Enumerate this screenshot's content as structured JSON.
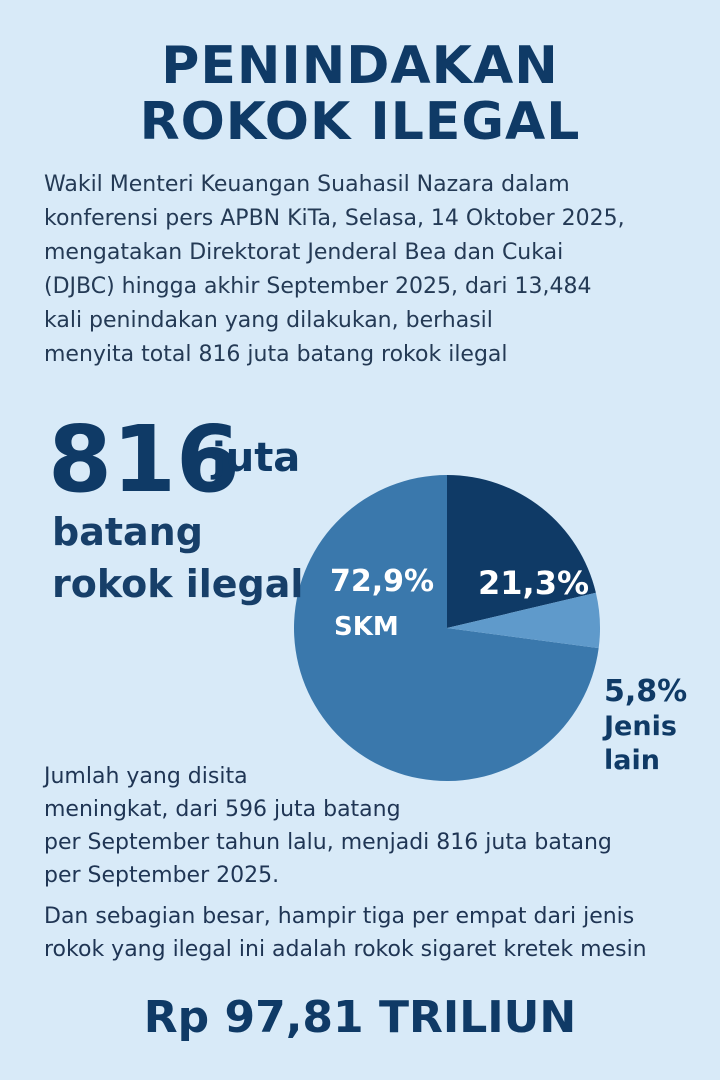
{
  "title": {
    "line1": "PENINDAKAN",
    "line2": "ROKOK ILEGAL"
  },
  "intro": {
    "lines": [
      "Wakil Menteri Keuangan Suahasil Nazara dalam",
      "konferensi pers APBN KiTa, Selasa, 14 Oktober 2025,",
      "mengatakan Direktorat Jenderal Bea dan Cukai",
      "(DJBC) hingga akhir September 2025, dari 13,484",
      "kali penindakan yang dilakukan, berhasil",
      "menyita total 816 juta batang rokok ilegal"
    ]
  },
  "headline_stat": {
    "number": "816",
    "unit": "juta",
    "line1": "batang",
    "line2": "rokok ilegal"
  },
  "chart_data": {
    "type": "pie",
    "slices": [
      {
        "label": "SKM",
        "value": 72.9,
        "display": "72,9%",
        "color": "#3a78ac"
      },
      {
        "label": "",
        "value": 21.3,
        "display": "21,3%",
        "color": "#0f3a66"
      },
      {
        "label": "Jenis lain",
        "value": 5.8,
        "display": "5,8%",
        "color": "#5f9acb"
      }
    ]
  },
  "body": {
    "para1": [
      "Jumlah yang disita",
      "meningkat, dari 596 juta batang",
      "per September tahun lalu, menjadi 816 juta batang",
      "per September 2025."
    ],
    "para2": [
      "Dan sebagian besar, hampir tiga per empat dari jenis",
      "rokok yang ilegal ini adalah rokok sigaret kretek mesin"
    ]
  },
  "total": "Rp 97,81 TRILIUN"
}
